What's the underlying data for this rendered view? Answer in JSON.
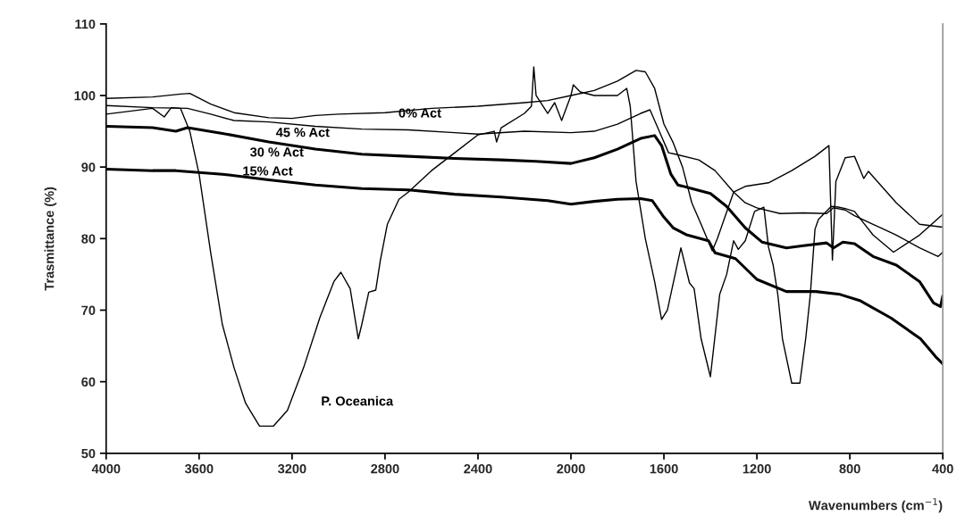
{
  "chart_data": {
    "type": "line",
    "xlabel": "Wavenumbers (cm$^{−1}$)",
    "ylabel": "Trasmittance (%)",
    "xlim": [
      4000,
      400
    ],
    "xticks": [
      4000,
      3600,
      3200,
      2800,
      2400,
      2000,
      1600,
      1200,
      800,
      400
    ],
    "ylim": [
      50,
      110
    ],
    "yticks": [
      50,
      60,
      70,
      80,
      90,
      100,
      110
    ],
    "grid": false,
    "legend": false,
    "marker": "none",
    "line_style": "solid",
    "series": [
      {
        "name": "0% Act",
        "color": "#000000",
        "x": [
          4000,
          3800,
          3680,
          3640,
          3550,
          3450,
          3300,
          3200,
          3100,
          3000,
          2800,
          2600,
          2400,
          2200,
          2100,
          2000,
          1900,
          1800,
          1720,
          1680,
          1640,
          1600,
          1560,
          1520,
          1480,
          1440,
          1392,
          1370,
          1300,
          1250,
          1150,
          1050,
          950,
          890,
          875,
          860,
          820,
          780,
          740,
          720,
          600,
          500,
          400
        ],
        "values": [
          99.6,
          99.8,
          100.2,
          100.3,
          98.8,
          97.6,
          96.9,
          96.8,
          97.2,
          97.4,
          97.6,
          98.2,
          98.5,
          99,
          99.3,
          100,
          100.7,
          102,
          103.5,
          103.3,
          101,
          96,
          93.4,
          90,
          85,
          82,
          78.3,
          80,
          86.5,
          87.3,
          87.8,
          89.5,
          91.5,
          93,
          77,
          88,
          91.3,
          91.5,
          88.4,
          89.4,
          85,
          82,
          81.6
        ]
      },
      {
        "name": "45 % Act",
        "color": "#000000",
        "x": [
          4000,
          3800,
          3650,
          3550,
          3450,
          3300,
          3100,
          2900,
          2700,
          2500,
          2400,
          2200,
          2000,
          1900,
          1800,
          1700,
          1660,
          1620,
          1580,
          1550,
          1450,
          1380,
          1300,
          1250,
          1200,
          1100,
          1000,
          900,
          870,
          820,
          780,
          700,
          600,
          500,
          420,
          400
        ],
        "values": [
          98.6,
          98.3,
          98.2,
          97.4,
          96.5,
          96.3,
          95.7,
          95.3,
          95.2,
          94.8,
          94.6,
          95,
          94.8,
          95,
          96,
          97.5,
          98,
          95,
          92,
          91.8,
          91,
          89.5,
          86.5,
          85,
          84.3,
          83.5,
          83.6,
          83.5,
          84.3,
          84,
          83.2,
          82,
          80.5,
          78.7,
          77.5,
          78.1
        ]
      },
      {
        "name": "30 % Act",
        "color": "#000000",
        "x": [
          4000,
          3800,
          3700,
          3650,
          3500,
          3300,
          3100,
          2900,
          2700,
          2500,
          2300,
          2150,
          2000,
          1900,
          1800,
          1700,
          1640,
          1610,
          1570,
          1540,
          1480,
          1400,
          1330,
          1250,
          1177,
          1073,
          1000,
          900,
          870,
          830,
          780,
          700,
          600,
          500,
          440,
          410,
          400
        ],
        "values": [
          95.7,
          95.5,
          95,
          95.5,
          94.7,
          93.5,
          92.5,
          91.8,
          91.5,
          91.2,
          91,
          90.8,
          90.5,
          91.3,
          92.5,
          94,
          94.4,
          93,
          89,
          87.5,
          87,
          86.3,
          84.5,
          81.5,
          79.5,
          78.7,
          79,
          79.4,
          78.7,
          79.5,
          79.3,
          77.5,
          76.3,
          74,
          71,
          70.5,
          72
        ]
      },
      {
        "name": "15% Act",
        "color": "#000000",
        "x": [
          4000,
          3800,
          3700,
          3500,
          3300,
          3100,
          2900,
          2700,
          2500,
          2300,
          2100,
          2000,
          1900,
          1800,
          1700,
          1650,
          1600,
          1560,
          1500,
          1408,
          1380,
          1292,
          1200,
          1073,
          946,
          842,
          754,
          623,
          496,
          431,
          400
        ],
        "values": [
          89.7,
          89.5,
          89.5,
          89,
          88.2,
          87.5,
          87,
          86.8,
          86.2,
          85.8,
          85.3,
          84.8,
          85.2,
          85.5,
          85.6,
          85.3,
          83,
          81.5,
          80.5,
          79.7,
          78,
          77.2,
          74.3,
          72.6,
          72.6,
          72.2,
          71.3,
          68.9,
          66,
          63.5,
          62.5
        ]
      },
      {
        "name": "P. Oceanica",
        "color": "#000000",
        "x": [
          4000,
          3800,
          3750,
          3720,
          3680,
          3640,
          3600,
          3550,
          3500,
          3450,
          3400,
          3340,
          3280,
          3220,
          3150,
          3080,
          3020,
          2990,
          2950,
          2930,
          2915,
          2900,
          2870,
          2840,
          2820,
          2790,
          2740,
          2700,
          2600,
          2500,
          2400,
          2330,
          2320,
          2300,
          2200,
          2170,
          2160,
          2150,
          2100,
          2070,
          2040,
          2000,
          1990,
          1960,
          1900,
          1800,
          1760,
          1745,
          1720,
          1680,
          1640,
          1610,
          1585,
          1527,
          1490,
          1470,
          1440,
          1400,
          1360,
          1330,
          1300,
          1280,
          1250,
          1210,
          1170,
          1150,
          1130,
          1110,
          1090,
          1050,
          1015,
          990,
          970,
          950,
          935,
          880,
          850,
          820,
          780,
          700,
          612,
          500,
          400
        ],
        "values": [
          97.4,
          98.2,
          97,
          98.3,
          98.2,
          95,
          89,
          78,
          68,
          62,
          57,
          53.8,
          53.8,
          56,
          62,
          69,
          74,
          75.3,
          73,
          69,
          66,
          68,
          72.5,
          72.8,
          77,
          82,
          85.5,
          86.5,
          89.5,
          92,
          94.5,
          95,
          93.5,
          95.5,
          97.5,
          98.5,
          104,
          100,
          97.5,
          99,
          96.5,
          100,
          101.5,
          100.5,
          100,
          100,
          101,
          98.5,
          88,
          80,
          74,
          68.7,
          70,
          78.7,
          73.8,
          73,
          66,
          60.7,
          72.2,
          75,
          79.7,
          78.5,
          79.7,
          83.8,
          84.4,
          78.8,
          76.3,
          72.2,
          66,
          59.8,
          59.8,
          66,
          72.2,
          81.3,
          82.7,
          84.5,
          84.4,
          84.2,
          83.8,
          80.5,
          78.1,
          80.5,
          83.4
        ]
      }
    ]
  }
}
